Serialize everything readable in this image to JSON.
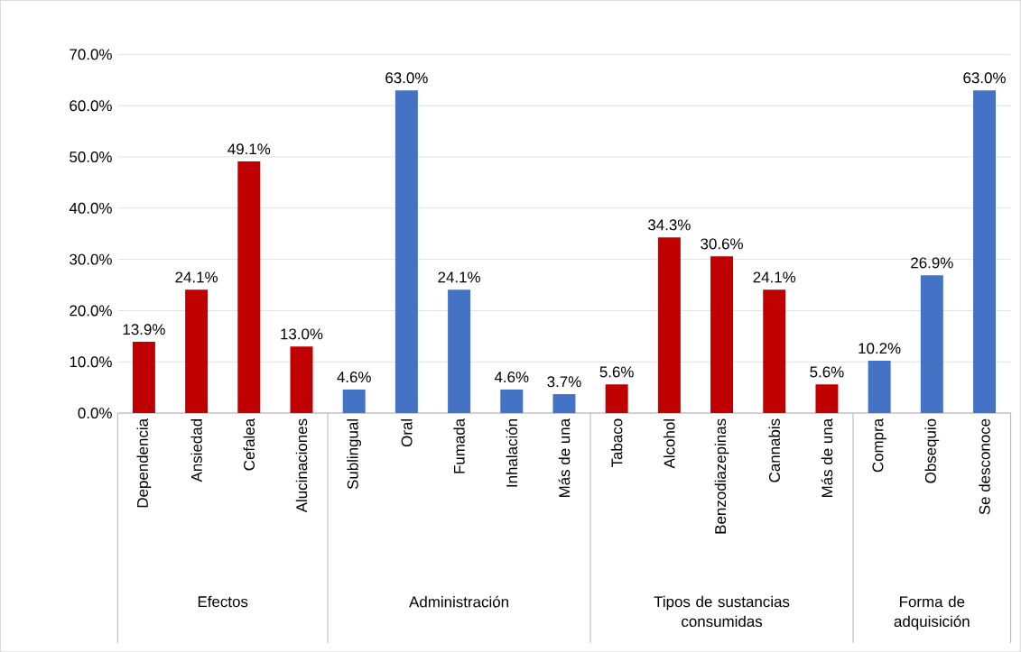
{
  "chart_data": {
    "type": "bar",
    "categories": [
      "Dependencia",
      "Ansiedad",
      "Cefalea",
      "Alucinaciones",
      "Sublingual",
      "Oral",
      "Fumada",
      "Inhalación",
      "Más de una",
      "Tabaco",
      "Alcohol",
      "Benzodiazepinas",
      "Cannabis",
      "Más de una",
      "Compra",
      "Obsequio",
      "Se desconoce"
    ],
    "values": [
      13.9,
      24.1,
      49.1,
      13.0,
      4.6,
      63.0,
      24.1,
      4.6,
      3.7,
      5.6,
      34.3,
      30.6,
      24.1,
      5.6,
      10.2,
      26.9,
      63.0
    ],
    "value_labels": [
      "13.9%",
      "24.1%",
      "49.1%",
      "13.0%",
      "4.6%",
      "63.0%",
      "24.1%",
      "4.6%",
      "3.7%",
      "5.6%",
      "34.3%",
      "30.6%",
      "24.1%",
      "5.6%",
      "10.2%",
      "26.9%",
      "63.0%"
    ],
    "colors": [
      "#c00000",
      "#c00000",
      "#c00000",
      "#c00000",
      "#4472c4",
      "#4472c4",
      "#4472c4",
      "#4472c4",
      "#4472c4",
      "#c00000",
      "#c00000",
      "#c00000",
      "#c00000",
      "#c00000",
      "#4472c4",
      "#4472c4",
      "#4472c4"
    ],
    "annotations": [
      "Efectos",
      "Administración",
      "Tipos de sustancias consumidas",
      "Forma de adquisición"
    ],
    "ylim": [
      0,
      70
    ],
    "yticks": [
      {
        "value": 0,
        "label": "0.0%"
      },
      {
        "value": 10,
        "label": "10.0%"
      },
      {
        "value": 20,
        "label": "20.0%"
      },
      {
        "value": 30,
        "label": "30.0%"
      },
      {
        "value": 40,
        "label": "40.0%"
      },
      {
        "value": 50,
        "label": "50.0%"
      },
      {
        "value": 60,
        "label": "60.0%"
      },
      {
        "value": 70,
        "label": "70.0%"
      }
    ],
    "grid": "y"
  }
}
